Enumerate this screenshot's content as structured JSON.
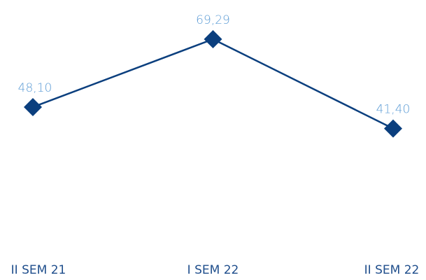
{
  "chart_data": {
    "type": "line",
    "categories": [
      "II SEM 21",
      "I SEM 22",
      "II SEM 22"
    ],
    "values": [
      48.1,
      69.29,
      41.4
    ],
    "value_labels": [
      "48,10",
      "69,29",
      "41,40"
    ],
    "color": "#0b3f7e",
    "ylim": [
      0,
      80
    ]
  }
}
